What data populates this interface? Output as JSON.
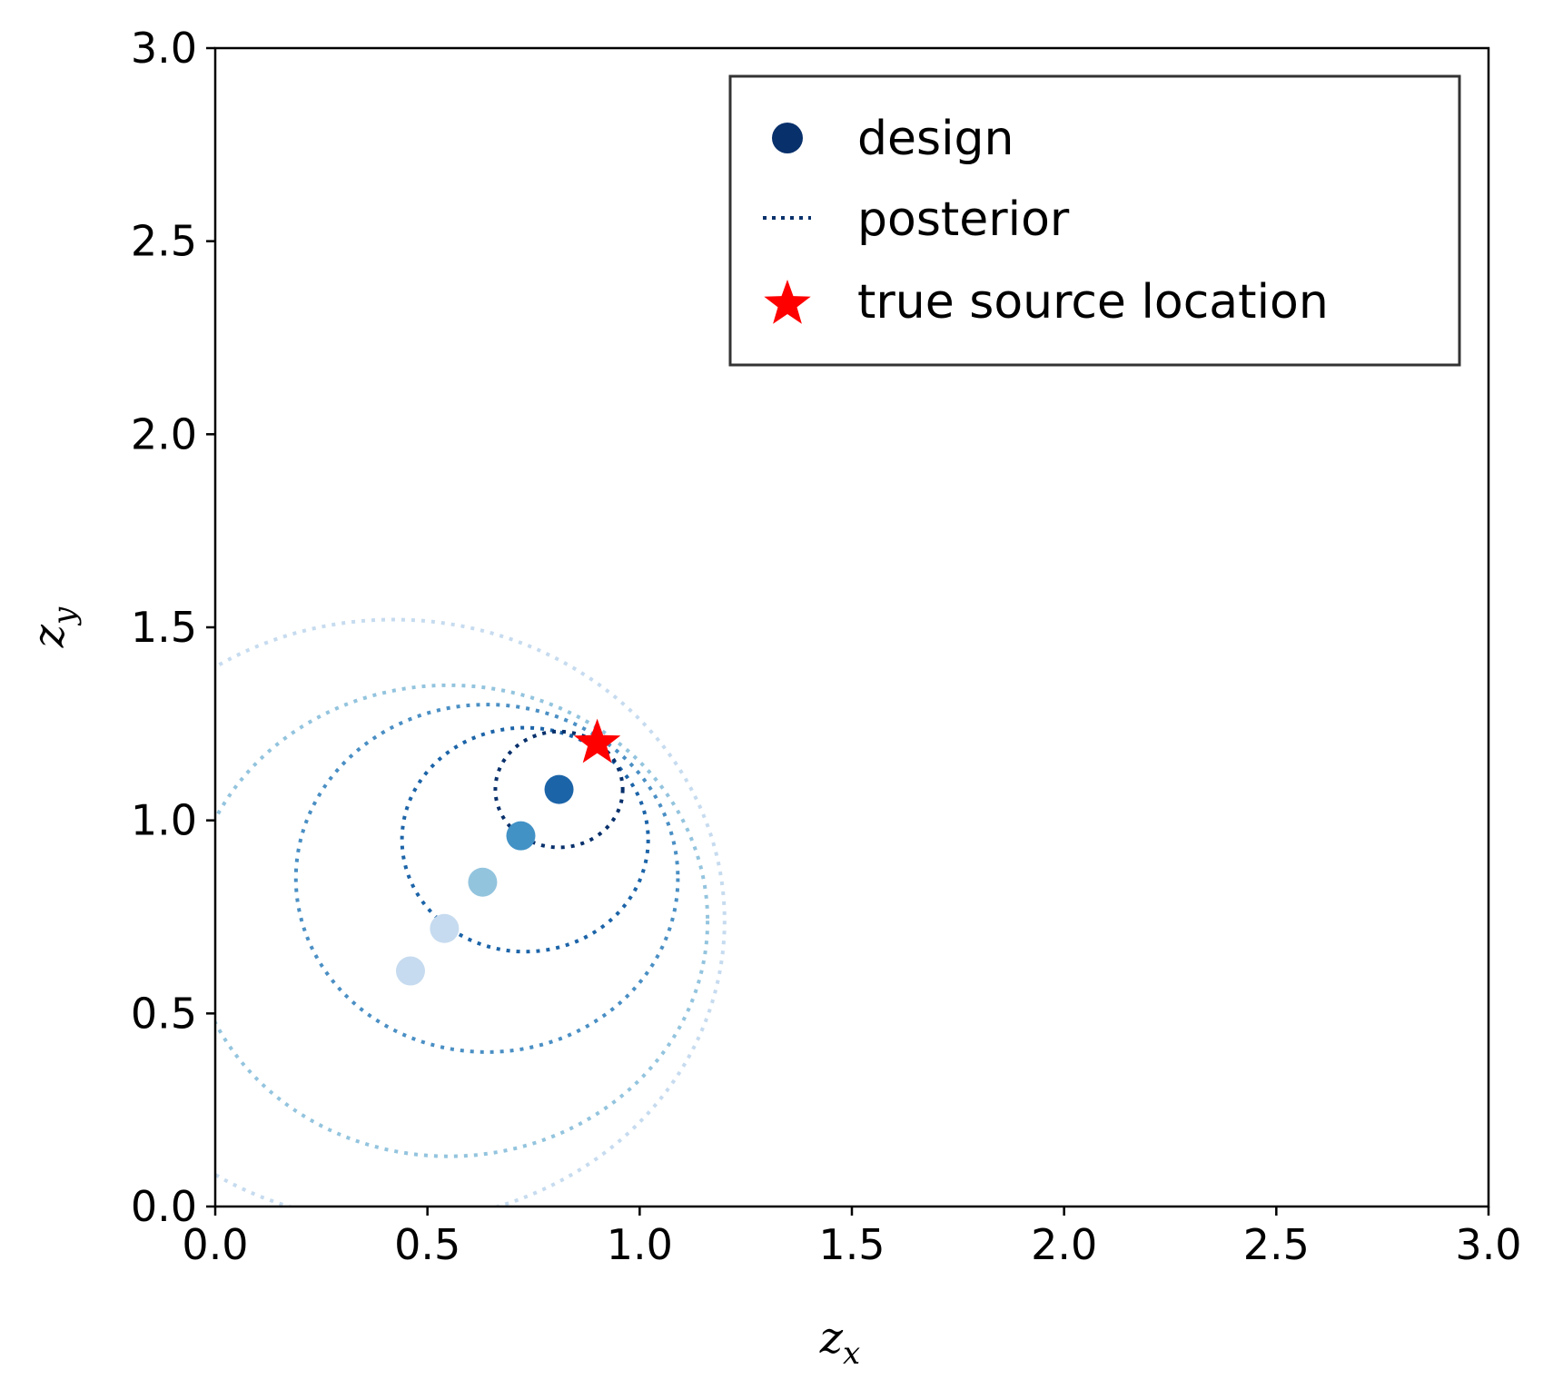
{
  "chart_data": {
    "type": "scatter",
    "xlabel": "z",
    "xlabel_sub": "x",
    "ylabel": "z",
    "ylabel_sub": "y",
    "xlim": [
      0,
      3
    ],
    "ylim": [
      0,
      3
    ],
    "xticks": [
      {
        "value": 0.0,
        "label": "0.0"
      },
      {
        "value": 0.5,
        "label": "0.5"
      },
      {
        "value": 1.0,
        "label": "1.0"
      },
      {
        "value": 1.5,
        "label": "1.5"
      },
      {
        "value": 2.0,
        "label": "2.0"
      },
      {
        "value": 2.5,
        "label": "2.5"
      },
      {
        "value": 3.0,
        "label": "3.0"
      }
    ],
    "yticks": [
      {
        "value": 0.0,
        "label": "0.0"
      },
      {
        "value": 0.5,
        "label": "0.5"
      },
      {
        "value": 1.0,
        "label": "1.0"
      },
      {
        "value": 1.5,
        "label": "1.5"
      },
      {
        "value": 2.0,
        "label": "2.0"
      },
      {
        "value": 2.5,
        "label": "2.5"
      },
      {
        "value": 3.0,
        "label": "3.0"
      }
    ],
    "grid": false,
    "legend_position": "top-right",
    "legend": [
      {
        "label": "design",
        "marker": "circle",
        "color": "#08306b"
      },
      {
        "label": "posterior",
        "marker": "dotted-line",
        "color": "#08306b"
      },
      {
        "label": "true source location",
        "marker": "star",
        "color": "#ff0000"
      }
    ],
    "design_points": [
      {
        "x": 0.46,
        "y": 0.61,
        "color": "#c6dbef"
      },
      {
        "x": 0.54,
        "y": 0.72,
        "color": "#c6dbef"
      },
      {
        "x": 0.63,
        "y": 0.84,
        "color": "#93c4de"
      },
      {
        "x": 0.72,
        "y": 0.96,
        "color": "#4292c6"
      },
      {
        "x": 0.81,
        "y": 1.08,
        "color": "#1c64a8"
      }
    ],
    "posterior_circles": [
      {
        "cx": 0.42,
        "cy": 0.74,
        "r": 0.78,
        "color": "#c6dbef"
      },
      {
        "cx": 0.55,
        "cy": 0.74,
        "r": 0.61,
        "color": "#93c4de"
      },
      {
        "cx": 0.64,
        "cy": 0.85,
        "r": 0.45,
        "color": "#4a8fc4"
      },
      {
        "cx": 0.73,
        "cy": 0.95,
        "r": 0.29,
        "color": "#1c64a8"
      },
      {
        "cx": 0.81,
        "cy": 1.08,
        "r": 0.15,
        "color": "#08306b"
      }
    ],
    "true_source": {
      "x": 0.9,
      "y": 1.2,
      "color": "#ff0000"
    }
  }
}
